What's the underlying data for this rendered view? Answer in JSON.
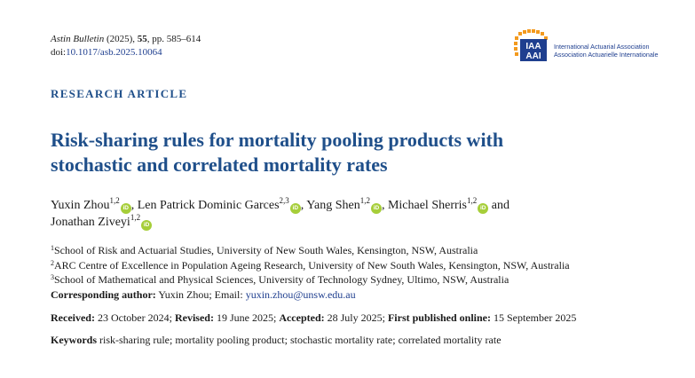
{
  "journal": {
    "name": "Astin Bulletin",
    "year": "(2025),",
    "volume": "55",
    "pages": ", pp. 585–614",
    "doi_label": "doi:",
    "doi_value": "10.1017/asb.2025.10064"
  },
  "logo": {
    "mark_line1": "IAA",
    "mark_line2": "AAI",
    "name_en": "International Actuarial Association",
    "name_fr": "Association Actuarielle Internationale",
    "colors": {
      "blue": "#1f3f8f",
      "orange": "#f39a1e"
    }
  },
  "kicker": "RESEARCH ARTICLE",
  "title_line1": "Risk-sharing rules for mortality pooling products with",
  "title_line2": "stochastic and correlated mortality rates",
  "orcid_label": "iD",
  "authors": [
    {
      "name": "Yuxin Zhou",
      "sup": "1,2",
      "sep": ", "
    },
    {
      "name": "Len Patrick Dominic Garces",
      "sup": "2,3",
      "sep": ", "
    },
    {
      "name": "Yang Shen",
      "sup": "1,2",
      "sep": ", "
    },
    {
      "name": "Michael Sherris",
      "sup": "1,2",
      "sep": " and "
    },
    {
      "name": "Jonathan Ziveyi",
      "sup": "1,2",
      "sep": ""
    }
  ],
  "affiliations": [
    {
      "num": "1",
      "text": "School of Risk and Actuarial Studies, University of New South Wales, Kensington, NSW, Australia"
    },
    {
      "num": "2",
      "text": "ARC Centre of Excellence in Population Ageing Research, University of New South Wales, Kensington, NSW, Australia"
    },
    {
      "num": "3",
      "text": "School of Mathematical and Physical Sciences, University of Technology Sydney, Ultimo, NSW, Australia"
    }
  ],
  "corresponding": {
    "label": "Corresponding author:",
    "text": " Yuxin Zhou; Email: ",
    "email": "yuxin.zhou@unsw.edu.au"
  },
  "dates": {
    "received_label": "Received:",
    "received": " 23 October 2024; ",
    "revised_label": "Revised:",
    "revised": " 19 June 2025; ",
    "accepted_label": "Accepted:",
    "accepted": " 28 July 2025; ",
    "published_label": "First published online:",
    "published": " 15 September 2025"
  },
  "keywords": {
    "label": "Keywords",
    "text": " risk-sharing rule; mortality pooling product; stochastic mortality rate; correlated mortality rate"
  }
}
